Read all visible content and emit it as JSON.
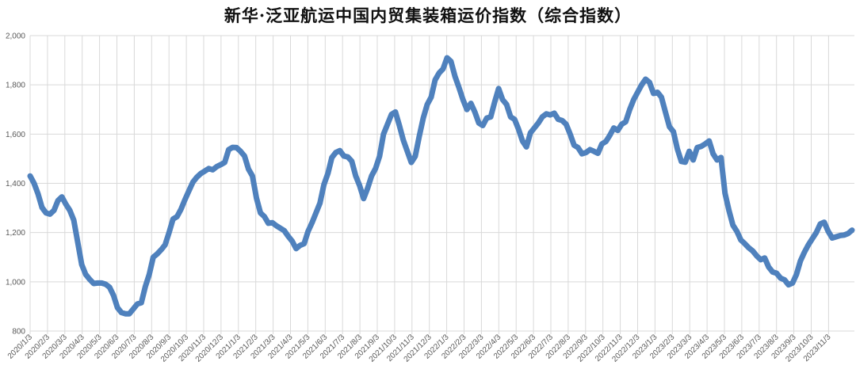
{
  "chart_data": {
    "type": "line",
    "title": "新华·泛亚航运中国内贸集装箱运价指数（综合指数）",
    "xlabel": "",
    "ylabel": "",
    "ylim": [
      800,
      2000
    ],
    "yticks": [
      "800",
      "1,000",
      "1,200",
      "1,400",
      "1,600",
      "1,800",
      "2,000"
    ],
    "ytick_values": [
      800,
      1000,
      1200,
      1400,
      1600,
      1800,
      2000
    ],
    "xtick_labels": [
      "2020/1/3",
      "2020/2/3",
      "2020/3/3",
      "2020/4/3",
      "2020/5/3",
      "2020/6/3",
      "2020/7/3",
      "2020/8/3",
      "2020/9/3",
      "2020/10/3",
      "2020/11/3",
      "2020/12/3",
      "2021/1/3",
      "2021/2/3",
      "2021/3/3",
      "2021/4/3",
      "2021/5/3",
      "2021/6/3",
      "2021/7/3",
      "2021/8/3",
      "2021/9/3",
      "2021/10/3",
      "2021/11/3",
      "2021/12/3",
      "2022/1/3",
      "2022/2/3",
      "2022/3/3",
      "2022/4/3",
      "2022/5/3",
      "2022/6/3",
      "2022/7/3",
      "2022/8/3",
      "2022/9/3",
      "2022/10/3",
      "2022/11/3",
      "2022/12/3",
      "2023/1/3",
      "2023/2/3",
      "2023/3/3",
      "2023/4/3",
      "2023/5/3",
      "2023/6/3",
      "2023/7/3",
      "2023/8/3",
      "2023/9/3",
      "2023/10/3",
      "2023/11/3"
    ],
    "grid": true,
    "x_start": "2020/1/3",
    "frequency": "weekly",
    "series": [
      {
        "color": "#4f81bd",
        "values": [
          1430,
          1400,
          1357,
          1302,
          1280,
          1275,
          1290,
          1330,
          1345,
          1315,
          1290,
          1250,
          1160,
          1070,
          1030,
          1010,
          993,
          995,
          995,
          990,
          978,
          945,
          895,
          875,
          870,
          870,
          890,
          910,
          915,
          980,
          1030,
          1100,
          1113,
          1130,
          1150,
          1200,
          1255,
          1265,
          1295,
          1334,
          1370,
          1405,
          1425,
          1440,
          1450,
          1460,
          1455,
          1468,
          1476,
          1485,
          1537,
          1546,
          1545,
          1530,
          1511,
          1458,
          1430,
          1340,
          1280,
          1265,
          1238,
          1240,
          1228,
          1218,
          1208,
          1185,
          1165,
          1135,
          1148,
          1155,
          1205,
          1240,
          1280,
          1320,
          1395,
          1440,
          1505,
          1525,
          1533,
          1511,
          1507,
          1490,
          1430,
          1390,
          1338,
          1380,
          1430,
          1460,
          1510,
          1600,
          1640,
          1680,
          1690,
          1635,
          1575,
          1530,
          1485,
          1510,
          1590,
          1665,
          1720,
          1750,
          1820,
          1848,
          1865,
          1910,
          1895,
          1835,
          1790,
          1740,
          1700,
          1725,
          1690,
          1645,
          1635,
          1665,
          1670,
          1730,
          1785,
          1740,
          1720,
          1670,
          1660,
          1620,
          1572,
          1548,
          1605,
          1625,
          1645,
          1670,
          1682,
          1678,
          1685,
          1660,
          1655,
          1640,
          1600,
          1555,
          1545,
          1520,
          1525,
          1537,
          1530,
          1522,
          1560,
          1570,
          1595,
          1625,
          1615,
          1640,
          1650,
          1700,
          1740,
          1770,
          1800,
          1823,
          1810,
          1765,
          1770,
          1750,
          1690,
          1630,
          1610,
          1540,
          1489,
          1486,
          1530,
          1495,
          1545,
          1550,
          1560,
          1572,
          1520,
          1495,
          1505,
          1360,
          1290,
          1230,
          1205,
          1170,
          1155,
          1138,
          1125,
          1105,
          1090,
          1097,
          1060,
          1040,
          1035,
          1015,
          1008,
          988,
          995,
          1030,
          1085,
          1120,
          1150,
          1175,
          1200,
          1235,
          1242,
          1205,
          1178,
          1183,
          1188,
          1190,
          1196,
          1210
        ]
      }
    ]
  }
}
